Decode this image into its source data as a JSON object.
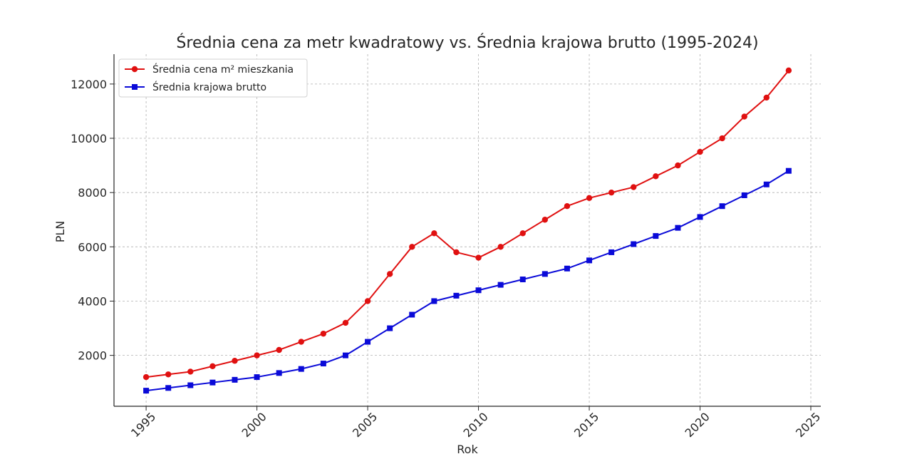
{
  "chart_data": {
    "type": "line",
    "title": "Średnia cena za metr kwadratowy vs. Średnia krajowa brutto (1995-2024)",
    "xlabel": "Rok",
    "ylabel": "PLN",
    "x": [
      1995,
      1996,
      1997,
      1998,
      1999,
      2000,
      2001,
      2002,
      2003,
      2004,
      2005,
      2006,
      2007,
      2008,
      2009,
      2010,
      2011,
      2012,
      2013,
      2014,
      2015,
      2016,
      2017,
      2018,
      2019,
      2020,
      2021,
      2022,
      2023,
      2024
    ],
    "xlim": [
      1993.55,
      2025.45
    ],
    "ylim": [
      125,
      13100
    ],
    "x_ticks": [
      "1995",
      "2000",
      "2005",
      "2010",
      "2015",
      "2020",
      "2025"
    ],
    "y_ticks": [
      "2000",
      "4000",
      "6000",
      "8000",
      "10000",
      "12000"
    ],
    "grid": true,
    "legend_position": "top-left",
    "series": [
      {
        "name": "Średnia cena m² mieszkania",
        "color": "#e01010",
        "marker": "circle",
        "values": [
          1200,
          1300,
          1400,
          1600,
          1800,
          2000,
          2200,
          2500,
          2800,
          3200,
          4000,
          5000,
          6000,
          6500,
          5800,
          5600,
          6000,
          6500,
          7000,
          7500,
          7800,
          8000,
          8200,
          8600,
          9000,
          9500,
          10000,
          10800,
          11500,
          12500
        ]
      },
      {
        "name": "Średnia krajowa brutto",
        "color": "#0a0ad8",
        "marker": "square",
        "values": [
          700,
          800,
          900,
          1000,
          1100,
          1200,
          1350,
          1500,
          1700,
          2000,
          2500,
          3000,
          3500,
          4000,
          4200,
          4400,
          4600,
          4800,
          5000,
          5200,
          5500,
          5800,
          6100,
          6400,
          6700,
          7100,
          7500,
          7900,
          8300,
          8800
        ]
      }
    ]
  }
}
